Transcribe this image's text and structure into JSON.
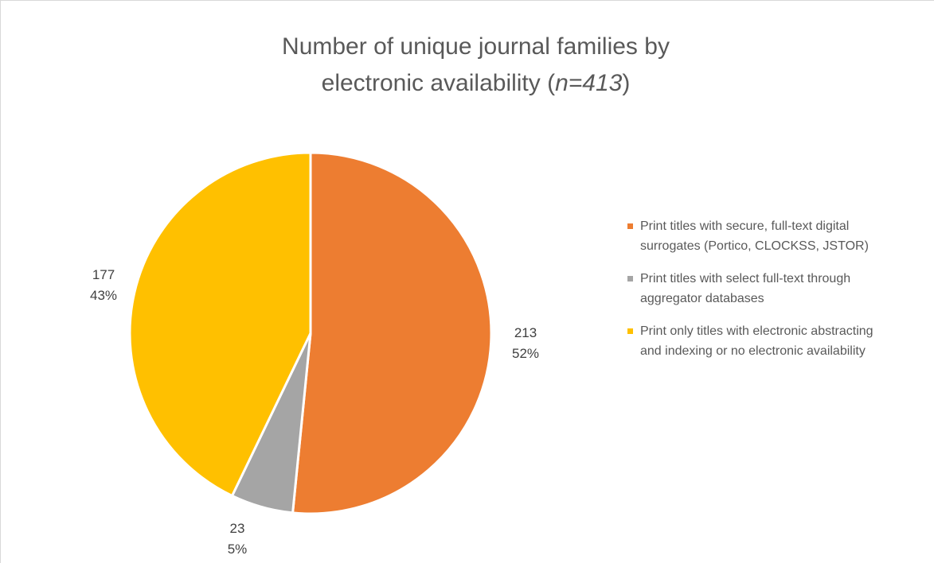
{
  "chart_data": {
    "type": "pie",
    "title_line1": "Number of unique journal families by",
    "title_line2_prefix": "electronic availability (",
    "title_line2_italic": "n=413",
    "title_line2_suffix": ")",
    "slices": [
      {
        "label": "Print titles with secure, full-text digital surrogates (Portico, CLOCKSS, JSTOR)",
        "value": 213,
        "percent": "52%",
        "color": "#ED7D31"
      },
      {
        "label": "Print titles with select full-text through aggregator databases",
        "value": 23,
        "percent": "5%",
        "color": "#A5A5A5"
      },
      {
        "label": "Print only titles with electronic abstracting and indexing or no electronic availability",
        "value": 177,
        "percent": "43%",
        "color": "#FFC000"
      }
    ],
    "legend_position": "right",
    "start_angle": "12 o'clock",
    "direction": "clockwise"
  }
}
